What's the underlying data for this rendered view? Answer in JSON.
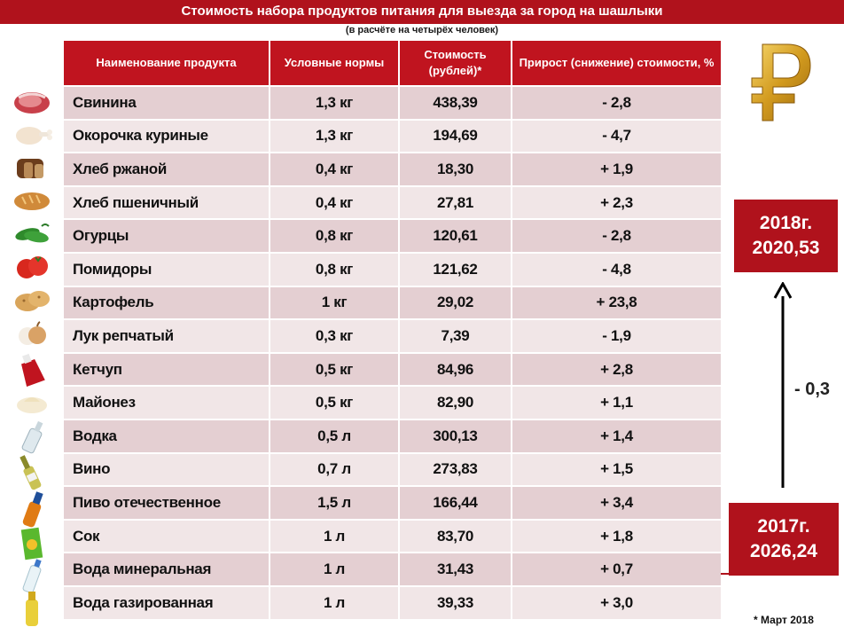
{
  "title": "Стоимость набора продуктов питания для выезда за город на шашлыки",
  "subtitle": "(в расчёте на четырёх человек)",
  "table": {
    "headers": {
      "name": "Наименование продукта",
      "norms": "Условные нормы",
      "cost": "Стоимость (рублей)*",
      "change": "Прирост (снижение) стоимости, %"
    },
    "rows": [
      {
        "name": "Свинина",
        "norm": "1,3 кг",
        "cost": "438,39",
        "change": "- 2,8",
        "icon": "pork-meat-icon"
      },
      {
        "name": "Окорочка куриные",
        "norm": "1,3 кг",
        "cost": "194,69",
        "change": "- 4,7",
        "icon": "chicken-leg-icon"
      },
      {
        "name": "Хлеб ржаной",
        "norm": "0,4 кг",
        "cost": "18,30",
        "change": "+ 1,9",
        "icon": "rye-bread-icon"
      },
      {
        "name": "Хлеб пшеничный",
        "norm": "0,4 кг",
        "cost": "27,81",
        "change": "+ 2,3",
        "icon": "wheat-bread-icon"
      },
      {
        "name": "Огурцы",
        "norm": "0,8 кг",
        "cost": "120,61",
        "change": "- 2,8",
        "icon": "cucumber-icon"
      },
      {
        "name": "Помидоры",
        "norm": "0,8 кг",
        "cost": "121,62",
        "change": "- 4,8",
        "icon": "tomato-icon"
      },
      {
        "name": "Картофель",
        "norm": "1 кг",
        "cost": "29,02",
        "change": "+ 23,8",
        "icon": "potato-icon"
      },
      {
        "name": "Лук репчатый",
        "norm": "0,3 кг",
        "cost": "7,39",
        "change": "- 1,9",
        "icon": "onion-icon"
      },
      {
        "name": "Кетчуп",
        "norm": "0,5 кг",
        "cost": "84,96",
        "change": "+ 2,8",
        "icon": "ketchup-icon"
      },
      {
        "name": "Майонез",
        "norm": "0,5 кг",
        "cost": "82,90",
        "change": "+ 1,1",
        "icon": "mayonnaise-icon"
      },
      {
        "name": "Водка",
        "norm": "0,5 л",
        "cost": "300,13",
        "change": "+ 1,4",
        "icon": "vodka-bottle-icon"
      },
      {
        "name": "Вино",
        "norm": "0,7 л",
        "cost": "273,83",
        "change": "+ 1,5",
        "icon": "wine-bottle-icon"
      },
      {
        "name": "Пиво отечественное",
        "norm": "1,5 л",
        "cost": "166,44",
        "change": "+ 3,4",
        "icon": "beer-bottle-icon"
      },
      {
        "name": "Сок",
        "norm": "1 л",
        "cost": "83,70",
        "change": "+ 1,8",
        "icon": "juice-box-icon"
      },
      {
        "name": "Вода минеральная",
        "norm": "1 л",
        "cost": "31,43",
        "change": "+ 0,7",
        "icon": "mineral-water-icon"
      },
      {
        "name": "Вода газированная",
        "norm": "1 л",
        "cost": "39,33",
        "change": "+ 3,0",
        "icon": "soda-bottle-icon"
      }
    ]
  },
  "summary": {
    "year_2018": "2018г.",
    "value_2018": "2020,53",
    "year_2017": "2017г.",
    "value_2017": "2026,24",
    "change": "- 0,3"
  },
  "footnote": "* Март 2018",
  "colors": {
    "accent": "#b0121c",
    "row_dark": "#e4cfd2",
    "row_light": "#f1e6e7",
    "ruble_gold": "#d7a424"
  }
}
